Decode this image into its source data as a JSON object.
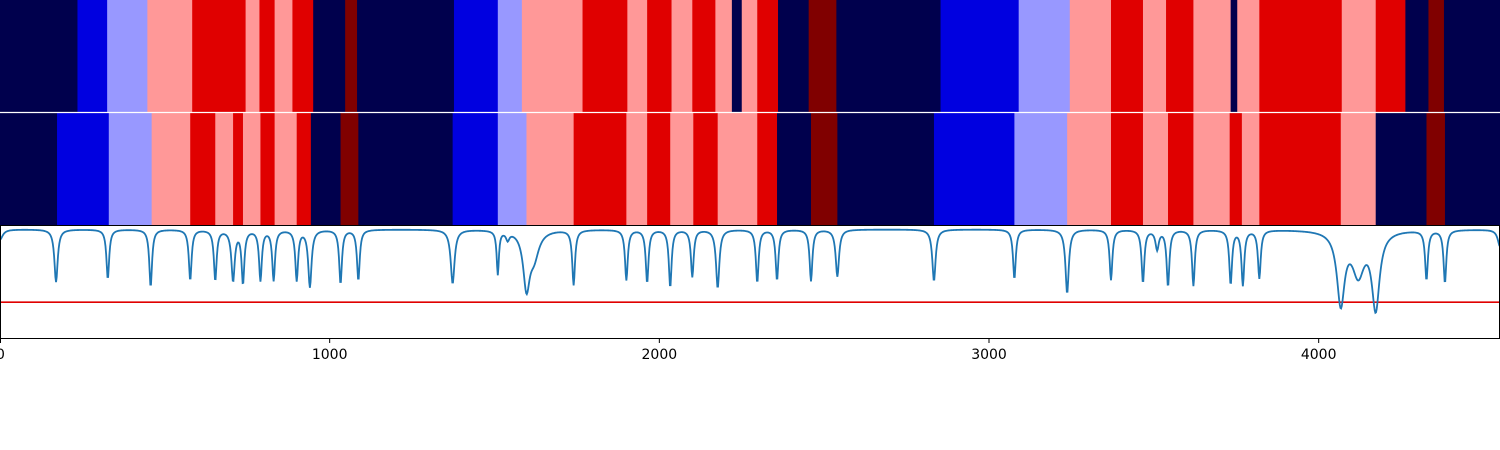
{
  "chart_data": [
    {
      "type": "heatmap",
      "name": "upper segmentation band",
      "palette": {
        "0": "#00004d",
        "1": "#0000e0",
        "2": "#9898ff",
        "3": "#ff9898",
        "4": "#e00000",
        "5": "#800000"
      },
      "segments": [
        [
          0,
          235,
          0
        ],
        [
          235,
          325,
          1
        ],
        [
          325,
          447,
          2
        ],
        [
          447,
          583,
          3
        ],
        [
          583,
          745,
          4
        ],
        [
          745,
          787,
          3
        ],
        [
          787,
          833,
          4
        ],
        [
          833,
          887,
          3
        ],
        [
          887,
          950,
          4
        ],
        [
          950,
          1047,
          0
        ],
        [
          1047,
          1083,
          5
        ],
        [
          1083,
          1377,
          0
        ],
        [
          1377,
          1510,
          1
        ],
        [
          1510,
          1583,
          2
        ],
        [
          1583,
          1767,
          3
        ],
        [
          1767,
          1903,
          4
        ],
        [
          1903,
          1963,
          3
        ],
        [
          1963,
          2037,
          4
        ],
        [
          2037,
          2100,
          3
        ],
        [
          2100,
          2170,
          4
        ],
        [
          2170,
          2220,
          3
        ],
        [
          2220,
          2250,
          0
        ],
        [
          2250,
          2297,
          3
        ],
        [
          2297,
          2360,
          4
        ],
        [
          2360,
          2453,
          0
        ],
        [
          2453,
          2537,
          5
        ],
        [
          2537,
          2853,
          0
        ],
        [
          2853,
          3090,
          1
        ],
        [
          3090,
          3245,
          2
        ],
        [
          3245,
          3370,
          3
        ],
        [
          3370,
          3467,
          4
        ],
        [
          3467,
          3537,
          3
        ],
        [
          3537,
          3620,
          4
        ],
        [
          3620,
          3733,
          3
        ],
        [
          3733,
          3753,
          0
        ],
        [
          3753,
          3820,
          3
        ],
        [
          3820,
          4070,
          4
        ],
        [
          4070,
          4173,
          3
        ],
        [
          4173,
          4263,
          4
        ],
        [
          4263,
          4333,
          0
        ],
        [
          4333,
          4380,
          5
        ],
        [
          4380,
          4550,
          0
        ]
      ]
    },
    {
      "type": "heatmap",
      "name": "lower segmentation band",
      "palette": {
        "0": "#00004d",
        "1": "#0000e0",
        "2": "#9898ff",
        "3": "#ff9898",
        "4": "#e00000",
        "5": "#800000"
      },
      "segments": [
        [
          0,
          173,
          0
        ],
        [
          173,
          330,
          1
        ],
        [
          330,
          460,
          2
        ],
        [
          460,
          577,
          3
        ],
        [
          577,
          653,
          4
        ],
        [
          653,
          707,
          3
        ],
        [
          707,
          737,
          4
        ],
        [
          737,
          790,
          3
        ],
        [
          790,
          833,
          4
        ],
        [
          833,
          900,
          3
        ],
        [
          900,
          943,
          4
        ],
        [
          943,
          1033,
          0
        ],
        [
          1033,
          1087,
          5
        ],
        [
          1087,
          1373,
          0
        ],
        [
          1373,
          1510,
          1
        ],
        [
          1510,
          1597,
          2
        ],
        [
          1597,
          1740,
          3
        ],
        [
          1740,
          1900,
          4
        ],
        [
          1900,
          1963,
          3
        ],
        [
          1963,
          2033,
          4
        ],
        [
          2033,
          2103,
          3
        ],
        [
          2103,
          2177,
          4
        ],
        [
          2177,
          2297,
          3
        ],
        [
          2297,
          2357,
          4
        ],
        [
          2357,
          2460,
          0
        ],
        [
          2460,
          2540,
          5
        ],
        [
          2540,
          2833,
          0
        ],
        [
          2833,
          3077,
          1
        ],
        [
          3077,
          3237,
          2
        ],
        [
          3237,
          3370,
          3
        ],
        [
          3370,
          3467,
          4
        ],
        [
          3467,
          3543,
          3
        ],
        [
          3543,
          3620,
          4
        ],
        [
          3620,
          3730,
          3
        ],
        [
          3730,
          3767,
          4
        ],
        [
          3767,
          3820,
          3
        ],
        [
          3820,
          4067,
          4
        ],
        [
          4067,
          4173,
          3
        ],
        [
          4173,
          4327,
          0
        ],
        [
          4327,
          4383,
          5
        ],
        [
          4383,
          4550,
          0
        ]
      ]
    },
    {
      "type": "line",
      "xlim": [
        0,
        4550
      ],
      "ylim": [
        0,
        1
      ],
      "xticks": [
        0,
        1000,
        2000,
        3000,
        4000
      ],
      "xtick_labels": [
        "0",
        "1000",
        "2000",
        "3000",
        "4000"
      ],
      "threshold": {
        "y": 0.32,
        "color": "#e00000"
      },
      "line_color": "#1f77b4",
      "baseline": 0.97,
      "dips": [
        [
          0,
          0.88,
          10
        ],
        [
          170,
          0.5,
          6
        ],
        [
          327,
          0.53,
          5
        ],
        [
          457,
          0.46,
          5
        ],
        [
          577,
          0.52,
          5
        ],
        [
          653,
          0.52,
          5
        ],
        [
          707,
          0.52,
          6
        ],
        [
          737,
          0.5,
          5
        ],
        [
          790,
          0.52,
          5
        ],
        [
          830,
          0.52,
          5
        ],
        [
          900,
          0.52,
          5
        ],
        [
          940,
          0.46,
          6
        ],
        [
          1033,
          0.49,
          5
        ],
        [
          1087,
          0.52,
          5
        ],
        [
          1373,
          0.49,
          7
        ],
        [
          1510,
          0.58,
          4
        ],
        [
          1540,
          0.9,
          6
        ],
        [
          1597,
          0.48,
          12
        ],
        [
          1620,
          0.75,
          18
        ],
        [
          1740,
          0.48,
          5
        ],
        [
          1900,
          0.52,
          5
        ],
        [
          1963,
          0.5,
          5
        ],
        [
          2033,
          0.46,
          5
        ],
        [
          2100,
          0.55,
          5
        ],
        [
          2177,
          0.45,
          6
        ],
        [
          2297,
          0.5,
          5
        ],
        [
          2357,
          0.52,
          5
        ],
        [
          2460,
          0.51,
          5
        ],
        [
          2540,
          0.55,
          6
        ],
        [
          2833,
          0.51,
          6
        ],
        [
          3077,
          0.53,
          5
        ],
        [
          3237,
          0.4,
          6
        ],
        [
          3370,
          0.52,
          5
        ],
        [
          3467,
          0.5,
          5
        ],
        [
          3510,
          0.8,
          6
        ],
        [
          3543,
          0.47,
          5
        ],
        [
          3620,
          0.47,
          5
        ],
        [
          3733,
          0.49,
          5
        ],
        [
          3770,
          0.48,
          5
        ],
        [
          3820,
          0.54,
          5
        ],
        [
          4067,
          0.33,
          14
        ],
        [
          4120,
          0.6,
          22
        ],
        [
          4173,
          0.29,
          14
        ],
        [
          4327,
          0.53,
          5
        ],
        [
          4383,
          0.5,
          5
        ],
        [
          4550,
          0.82,
          8
        ]
      ]
    }
  ]
}
